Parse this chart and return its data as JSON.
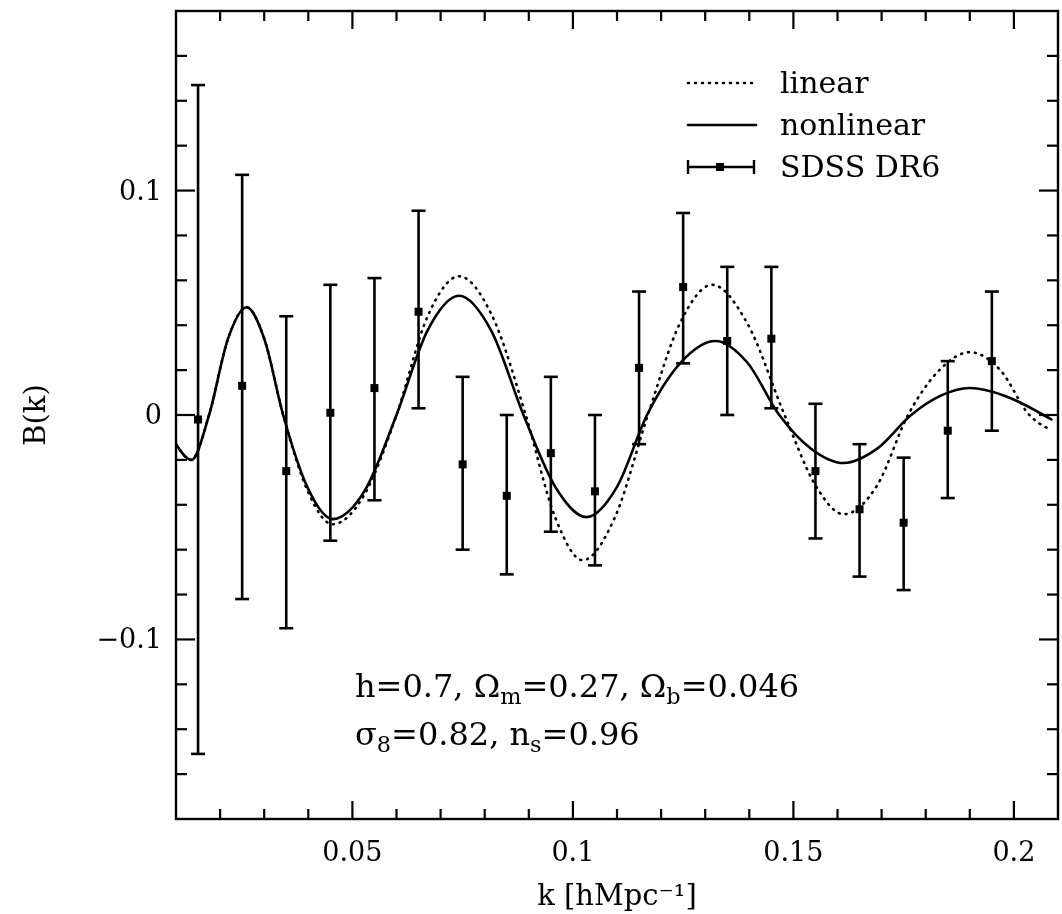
{
  "chart_data": {
    "type": "line",
    "xlabel": "k [hMpc⁻¹]",
    "ylabel": "B(k)",
    "xlim": [
      0.01,
      0.21
    ],
    "ylim": [
      -0.18,
      0.18
    ],
    "xticks": [
      {
        "value": 0.02,
        "label": null
      },
      {
        "value": 0.03,
        "label": null
      },
      {
        "value": 0.04,
        "label": null
      },
      0.05,
      {
        "value": 0.06,
        "label": null
      },
      {
        "value": 0.07,
        "label": null
      },
      {
        "value": 0.08,
        "label": null
      },
      {
        "value": 0.09,
        "label": null
      },
      0.1,
      {
        "value": 0.11,
        "label": null
      },
      {
        "value": 0.12,
        "label": null
      },
      {
        "value": 0.13,
        "label": null
      },
      {
        "value": 0.14,
        "label": null
      },
      0.15,
      {
        "value": 0.16,
        "label": null
      },
      {
        "value": 0.17,
        "label": null
      },
      {
        "value": 0.18,
        "label": null
      },
      {
        "value": 0.19,
        "label": null
      },
      0.2
    ],
    "yticks": [
      {
        "value": -0.16,
        "label": null
      },
      {
        "value": -0.14,
        "label": null
      },
      {
        "value": -0.12,
        "label": null
      },
      {
        "value": -0.1,
        "label": "−0.1"
      },
      {
        "value": -0.08,
        "label": null
      },
      {
        "value": -0.06,
        "label": null
      },
      {
        "value": -0.04,
        "label": null
      },
      {
        "value": -0.02,
        "label": null
      },
      0,
      {
        "value": 0.02,
        "label": null
      },
      {
        "value": 0.04,
        "label": null
      },
      {
        "value": 0.06,
        "label": null
      },
      {
        "value": 0.08,
        "label": null
      },
      0.1,
      {
        "value": 0.12,
        "label": null
      },
      {
        "value": 0.14,
        "label": null
      },
      {
        "value": 0.16,
        "label": null
      }
    ],
    "legend": "top right",
    "annotations": [
      "h=0.7,  Ω$_{m}$=0.27,  Ω$_{b}$=0.046",
      "σ$_{8}$=0.82,  n$_{s}$=0.96"
    ],
    "series": [
      {
        "name": "linear",
        "line_style": "dotted",
        "color": "#000000",
        "x": [
          0.01,
          0.0135,
          0.0175,
          0.0218,
          0.026,
          0.03,
          0.0343,
          0.04,
          0.0455,
          0.053,
          0.06,
          0.067,
          0.0742,
          0.0818,
          0.0893,
          0.096,
          0.1022,
          0.1095,
          0.117,
          0.1243,
          0.1316,
          0.1395,
          0.148,
          0.155,
          0.1614,
          0.169,
          0.176,
          0.183,
          0.19,
          0.197,
          0.2035,
          0.2085
        ],
        "values": [
          -0.013,
          -0.02,
          0,
          0.034,
          0.048,
          0.034,
          0,
          -0.0345,
          -0.0487,
          -0.0345,
          0,
          0.0437,
          0.0618,
          0.0437,
          0,
          -0.0457,
          -0.0647,
          -0.0457,
          0,
          0.041,
          0.058,
          0.041,
          0,
          -0.0313,
          -0.0442,
          -0.0313,
          0,
          0.0198,
          0.028,
          0.0198,
          0,
          -0.0067
        ]
      },
      {
        "name": "nonlinear",
        "line_style": "solid",
        "color": "#000000",
        "x": [
          0.01,
          0.0135,
          0.0175,
          0.0218,
          0.026,
          0.03,
          0.0343,
          0.04,
          0.0455,
          0.053,
          0.06,
          0.067,
          0.0742,
          0.0815,
          0.0888,
          0.096,
          0.1031,
          0.11,
          0.1168,
          0.1245,
          0.1323,
          0.1395,
          0.1468,
          0.154,
          0.1614,
          0.169,
          0.1767,
          0.1833,
          0.19,
          0.198,
          0.2058,
          0.2085
        ],
        "values": [
          -0.013,
          -0.02,
          0,
          0.034,
          0.048,
          0.034,
          0,
          -0.033,
          -0.0464,
          -0.033,
          0,
          0.0375,
          0.0531,
          0.0375,
          0,
          -0.032,
          -0.0455,
          -0.032,
          0,
          0.0235,
          0.033,
          0.0235,
          0,
          -0.015,
          -0.0214,
          -0.015,
          0,
          0.0085,
          0.012,
          0.0085,
          0.001,
          -0.002
        ]
      },
      {
        "name": "SDSS DR6",
        "type": "scatter",
        "marker": "square",
        "color": "#000000",
        "x": [
          0.015,
          0.025,
          0.035,
          0.045,
          0.055,
          0.065,
          0.075,
          0.085,
          0.095,
          0.105,
          0.115,
          0.125,
          0.135,
          0.145,
          0.155,
          0.165,
          0.175,
          0.185,
          0.195
        ],
        "values": [
          -0.002,
          0.013,
          -0.025,
          0.001,
          0.012,
          0.046,
          -0.022,
          -0.036,
          -0.017,
          -0.034,
          0.021,
          0.057,
          0.033,
          0.034,
          -0.025,
          -0.042,
          -0.048,
          -0.007,
          0.024
        ],
        "errors": [
          [
            -0.151,
            0.147
          ],
          [
            -0.082,
            0.107
          ],
          [
            -0.095,
            0.044
          ],
          [
            -0.056,
            0.058
          ],
          [
            -0.038,
            0.061
          ],
          [
            0.003,
            0.091
          ],
          [
            -0.06,
            0.017
          ],
          [
            -0.071,
            0
          ],
          [
            -0.052,
            0.017
          ],
          [
            -0.067,
            0
          ],
          [
            -0.013,
            0.055
          ],
          [
            0.023,
            0.09
          ],
          [
            0,
            0.066
          ],
          [
            0.003,
            0.066
          ],
          [
            -0.055,
            0.005
          ],
          [
            -0.072,
            -0.013
          ],
          [
            -0.078,
            -0.019
          ],
          [
            -0.037,
            0.024
          ],
          [
            -0.007,
            0.055
          ]
        ]
      }
    ]
  }
}
